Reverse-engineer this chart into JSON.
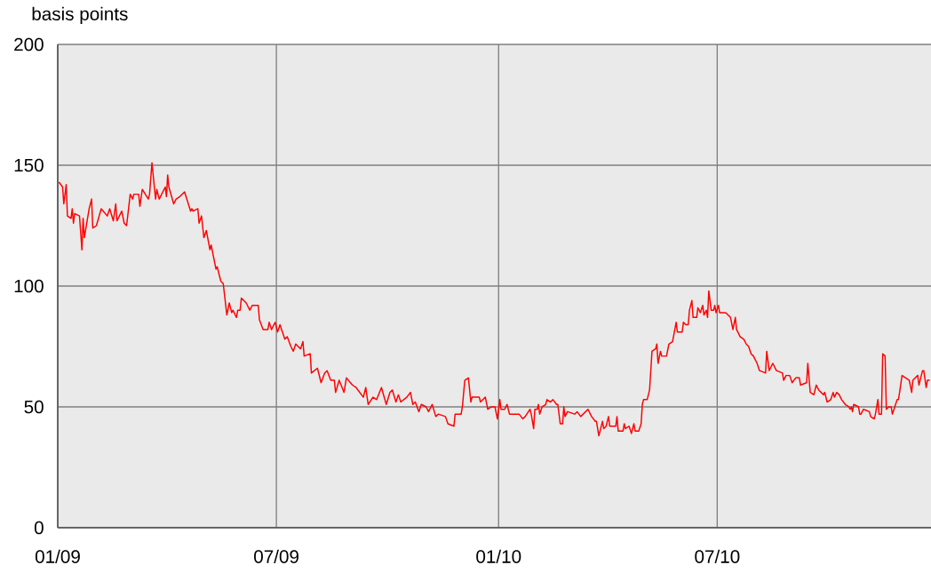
{
  "chart_data": {
    "type": "line",
    "ylabel": "basis points",
    "color": "#ff0000",
    "line_style": "solid",
    "grid": true,
    "xlim": [
      "2009-01-01",
      "2010-12-25"
    ],
    "xticks": [
      {
        "value": "2009-01-01",
        "label": "01/09"
      },
      {
        "value": "2009-07-01",
        "label": "07/09"
      },
      {
        "value": "2010-01-01",
        "label": "01/10"
      },
      {
        "value": "2010-07-01",
        "label": "07/10"
      }
    ],
    "ylim": [
      0,
      200
    ],
    "yticks": [
      0,
      50,
      100,
      150,
      200
    ],
    "x": [
      "2009-01-02",
      "2009-01-05",
      "2009-01-06",
      "2009-01-08",
      "2009-01-09",
      "2009-01-12",
      "2009-01-13",
      "2009-01-14",
      "2009-01-15",
      "2009-01-19",
      "2009-01-21",
      "2009-01-22",
      "2009-01-23",
      "2009-01-27",
      "2009-01-29",
      "2009-01-30",
      "2009-02-02",
      "2009-02-06",
      "2009-02-11",
      "2009-02-13",
      "2009-02-16",
      "2009-02-18",
      "2009-02-19",
      "2009-02-23",
      "2009-02-25",
      "2009-02-27",
      "2009-03-02",
      "2009-03-04",
      "2009-03-05",
      "2009-03-09",
      "2009-03-10",
      "2009-03-12",
      "2009-03-17",
      "2009-03-18",
      "2009-03-20",
      "2009-03-23",
      "2009-03-24",
      "2009-03-26",
      "2009-03-31",
      "2009-04-01",
      "2009-04-02",
      "2009-04-03",
      "2009-04-07",
      "2009-04-09",
      "2009-04-12",
      "2009-04-16",
      "2009-04-21",
      "2009-04-22",
      "2009-04-23",
      "2009-04-27",
      "2009-04-28",
      "2009-04-30",
      "2009-05-02",
      "2009-05-04",
      "2009-05-07",
      "2009-05-08",
      "2009-05-12",
      "2009-05-13",
      "2009-05-16",
      "2009-05-18",
      "2009-05-21",
      "2009-05-23",
      "2009-05-25",
      "2009-05-26",
      "2009-05-29",
      "2009-05-30",
      "2009-06-01",
      "2009-06-02",
      "2009-06-06",
      "2009-06-09",
      "2009-06-11",
      "2009-06-16",
      "2009-06-17",
      "2009-06-20",
      "2009-06-24",
      "2009-06-25",
      "2009-06-27",
      "2009-06-30",
      "2009-07-02",
      "2009-07-04",
      "2009-07-08",
      "2009-07-10",
      "2009-07-13",
      "2009-07-15",
      "2009-07-17",
      "2009-07-21",
      "2009-07-23",
      "2009-07-24",
      "2009-07-29",
      "2009-07-30",
      "2009-08-04",
      "2009-08-07",
      "2009-08-10",
      "2009-08-12",
      "2009-08-15",
      "2009-08-18",
      "2009-08-19",
      "2009-08-22",
      "2009-08-26",
      "2009-08-28",
      "2009-09-02",
      "2009-09-05",
      "2009-09-11",
      "2009-09-13",
      "2009-09-15",
      "2009-09-19",
      "2009-09-22",
      "2009-09-26",
      "2009-09-30",
      "2009-10-03",
      "2009-10-05",
      "2009-10-08",
      "2009-10-10",
      "2009-10-12",
      "2009-10-17",
      "2009-10-20",
      "2009-10-22",
      "2009-10-24",
      "2009-10-27",
      "2009-10-29",
      "2009-11-02",
      "2009-11-04",
      "2009-11-07",
      "2009-11-10",
      "2009-11-12",
      "2009-11-18",
      "2009-11-20",
      "2009-11-25",
      "2009-11-26",
      "2009-12-01",
      "2009-12-02",
      "2009-12-04",
      "2009-12-07",
      "2009-12-09",
      "2009-12-10",
      "2009-12-16",
      "2009-12-17",
      "2009-12-21",
      "2009-12-23",
      "2009-12-26",
      "2009-12-29",
      "2009-12-31",
      "2010-01-02",
      "2010-01-03",
      "2010-01-06",
      "2010-01-08",
      "2010-01-10",
      "2010-01-14",
      "2010-01-18",
      "2010-01-21",
      "2010-01-23",
      "2010-01-27",
      "2010-01-28",
      "2010-01-30",
      "2010-01-31",
      "2010-02-02",
      "2010-02-03",
      "2010-02-04",
      "2010-02-06",
      "2010-02-09",
      "2010-02-10",
      "2010-02-13",
      "2010-02-15",
      "2010-02-18",
      "2010-02-19",
      "2010-02-21",
      "2010-02-23",
      "2010-02-24",
      "2010-02-25",
      "2010-02-27",
      "2010-03-05",
      "2010-03-07",
      "2010-03-10",
      "2010-03-12",
      "2010-03-16",
      "2010-03-19",
      "2010-03-22",
      "2010-03-23",
      "2010-03-25",
      "2010-03-28",
      "2010-03-29",
      "2010-03-31",
      "2010-04-02",
      "2010-04-03",
      "2010-04-08",
      "2010-04-09",
      "2010-04-10",
      "2010-04-14",
      "2010-04-15",
      "2010-04-16",
      "2010-04-19",
      "2010-04-21",
      "2010-04-23",
      "2010-04-24",
      "2010-04-27",
      "2010-04-29",
      "2010-04-30",
      "2010-05-01",
      "2010-05-04",
      "2010-05-06",
      "2010-05-07",
      "2010-05-08",
      "2010-05-11",
      "2010-05-12",
      "2010-05-13",
      "2010-05-15",
      "2010-05-16",
      "2010-05-20",
      "2010-05-22",
      "2010-05-25",
      "2010-05-28",
      "2010-05-29",
      "2010-06-02",
      "2010-06-03",
      "2010-06-05",
      "2010-06-07",
      "2010-06-08",
      "2010-06-10",
      "2010-06-11",
      "2010-06-14",
      "2010-06-15",
      "2010-06-17",
      "2010-06-19",
      "2010-06-20",
      "2010-06-22",
      "2010-06-23",
      "2010-06-24",
      "2010-06-26",
      "2010-06-28",
      "2010-06-29",
      "2010-06-30",
      "2010-07-02",
      "2010-07-03",
      "2010-07-08",
      "2010-07-12",
      "2010-07-14",
      "2010-07-16",
      "2010-07-17",
      "2010-07-20",
      "2010-07-23",
      "2010-07-25",
      "2010-07-27",
      "2010-07-29",
      "2010-07-31",
      "2010-08-03",
      "2010-08-05",
      "2010-08-10",
      "2010-08-11",
      "2010-08-13",
      "2010-08-16",
      "2010-08-19",
      "2010-08-24",
      "2010-08-25",
      "2010-08-27",
      "2010-08-30",
      "2010-09-01",
      "2010-09-04",
      "2010-09-07",
      "2010-09-08",
      "2010-09-13",
      "2010-09-14",
      "2010-09-16",
      "2010-09-19",
      "2010-09-21",
      "2010-09-23",
      "2010-09-27",
      "2010-09-28",
      "2010-09-30",
      "2010-10-03",
      "2010-10-05",
      "2010-10-06",
      "2010-10-08",
      "2010-10-10",
      "2010-10-12",
      "2010-10-15",
      "2010-10-18",
      "2010-10-19",
      "2010-10-20",
      "2010-10-21",
      "2010-10-22",
      "2010-10-26",
      "2010-10-27",
      "2010-10-28",
      "2010-10-30",
      "2010-11-04",
      "2010-11-05",
      "2010-11-08",
      "2010-11-09",
      "2010-11-11",
      "2010-11-12",
      "2010-11-14",
      "2010-11-15",
      "2010-11-17",
      "2010-11-18",
      "2010-11-20",
      "2010-11-22",
      "2010-11-23",
      "2010-11-25",
      "2010-11-27",
      "2010-11-28",
      "2010-11-29",
      "2010-12-01",
      "2010-12-04",
      "2010-12-07",
      "2010-12-09",
      "2010-12-10",
      "2010-12-12",
      "2010-12-14",
      "2010-12-15",
      "2010-12-16",
      "2010-12-18",
      "2010-12-19",
      "2010-12-21",
      "2010-12-22",
      "2010-12-24"
    ],
    "values": [
      143,
      141,
      134,
      142,
      129,
      128,
      132,
      126,
      130,
      129,
      115,
      128,
      120,
      132,
      136,
      124,
      125,
      132,
      129,
      132,
      127,
      134,
      127,
      131,
      126,
      125,
      138,
      136,
      138,
      138,
      133,
      140,
      136,
      138,
      151,
      136,
      140,
      136,
      141,
      137,
      146,
      141,
      134,
      136,
      137,
      139,
      131,
      132,
      131,
      132,
      126,
      129,
      120,
      123,
      115,
      117,
      107,
      108,
      102,
      101,
      88,
      93,
      89,
      90,
      87,
      90,
      90,
      95,
      93,
      90,
      92,
      92,
      86,
      82,
      82,
      85,
      82,
      85,
      81,
      84,
      78,
      79,
      75,
      73,
      76,
      74,
      77,
      71,
      72,
      64,
      66,
      60,
      64,
      65,
      61,
      61,
      56,
      61,
      56,
      62,
      59,
      58,
      54,
      58,
      51,
      54,
      53,
      58,
      51,
      56,
      57,
      52,
      55,
      52,
      54,
      56,
      51,
      52,
      48,
      51,
      50,
      48,
      51,
      46,
      47,
      46,
      43,
      42,
      47,
      47,
      50,
      61,
      62,
      52,
      54,
      54,
      52,
      54,
      49,
      50,
      50,
      45,
      53,
      49,
      49,
      51,
      47,
      47,
      47,
      45,
      46,
      49,
      47,
      41,
      49,
      49,
      51,
      47,
      50,
      51,
      53,
      52,
      53,
      51,
      51,
      43,
      43,
      50,
      46,
      48,
      47,
      48,
      46,
      47,
      49,
      46,
      44,
      44,
      38,
      44,
      41,
      42,
      46,
      42,
      42,
      46,
      40,
      40,
      43,
      41,
      42,
      39,
      43,
      40,
      40,
      43,
      51,
      53,
      53,
      57,
      65,
      73,
      74,
      76,
      68,
      73,
      71,
      71,
      76,
      77,
      85,
      81,
      81,
      85,
      84,
      84,
      90,
      94,
      87,
      87,
      91,
      89,
      92,
      88,
      90,
      87,
      98,
      90,
      90,
      92,
      89,
      92,
      89,
      89,
      87,
      82,
      87,
      82,
      79,
      78,
      76,
      75,
      72,
      71,
      68,
      65,
      64,
      73,
      65,
      68,
      65,
      64,
      61,
      63,
      63,
      60,
      62,
      62,
      59,
      60,
      68,
      56,
      55,
      59,
      57,
      55,
      56,
      52,
      53,
      56,
      54,
      56,
      55,
      53,
      51,
      50,
      49,
      50,
      48,
      51,
      50,
      47,
      47,
      49,
      48,
      46,
      45,
      47,
      53,
      47,
      47,
      72,
      71,
      49,
      50,
      50,
      47,
      50,
      53,
      53,
      56,
      63,
      62,
      61,
      56,
      61,
      62,
      63,
      59,
      61,
      65,
      65,
      58,
      61,
      61
    ]
  }
}
